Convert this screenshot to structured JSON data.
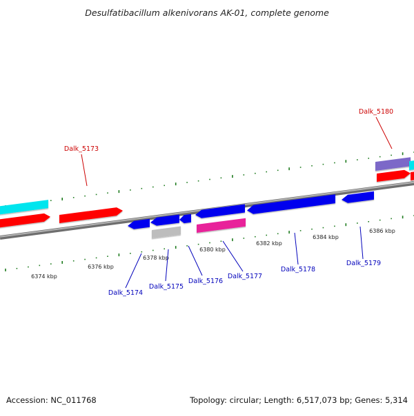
{
  "title": "Desulfatibacillum alkenivorans AK-01, complete genome",
  "footer": {
    "accession": "Accession: NC_011768",
    "topology": "Topology: circular; Length: 6,517,073 bp; Genes: 5,314"
  },
  "ruler": {
    "unit": "kbp",
    "ticks": [
      {
        "label": "6374 kbp"
      },
      {
        "label": "6376 kbp"
      },
      {
        "label": "6378 kbp"
      },
      {
        "label": "6380 kbp"
      },
      {
        "label": "6382 kbp"
      },
      {
        "label": "6384 kbp"
      },
      {
        "label": "6386 kbp"
      }
    ]
  },
  "genes": [
    {
      "label": "Dalk_5173",
      "strand": "forward",
      "color": "#ff0000"
    },
    {
      "label": "Dalk_5174",
      "strand": "reverse",
      "color": "#0000ee"
    },
    {
      "label": "Dalk_5175",
      "strand": "reverse",
      "color": "#0000ee"
    },
    {
      "label": "Dalk_5176",
      "strand": "reverse",
      "color": "#0000ee"
    },
    {
      "label": "Dalk_5177",
      "strand": "reverse",
      "color": "#0000ee"
    },
    {
      "label": "Dalk_5178",
      "strand": "reverse",
      "color": "#0000ee"
    },
    {
      "label": "Dalk_5179",
      "strand": "reverse",
      "color": "#0000ee"
    },
    {
      "label": "Dalk_5180",
      "strand": "forward",
      "color": "#ff0000"
    }
  ],
  "colors": {
    "forward_cds": "#ff0000",
    "reverse_cds": "#0000ee",
    "cyan_feature": "#00e5ee",
    "purple_feature": "#7b68c8",
    "gray_feature": "#bdbdbd",
    "pink_feature": "#e8209a",
    "backbone": "#8c8c8c",
    "tick_green": "#1e7b1e",
    "forward_label": "#cc0000",
    "reverse_label": "#0000bb"
  }
}
